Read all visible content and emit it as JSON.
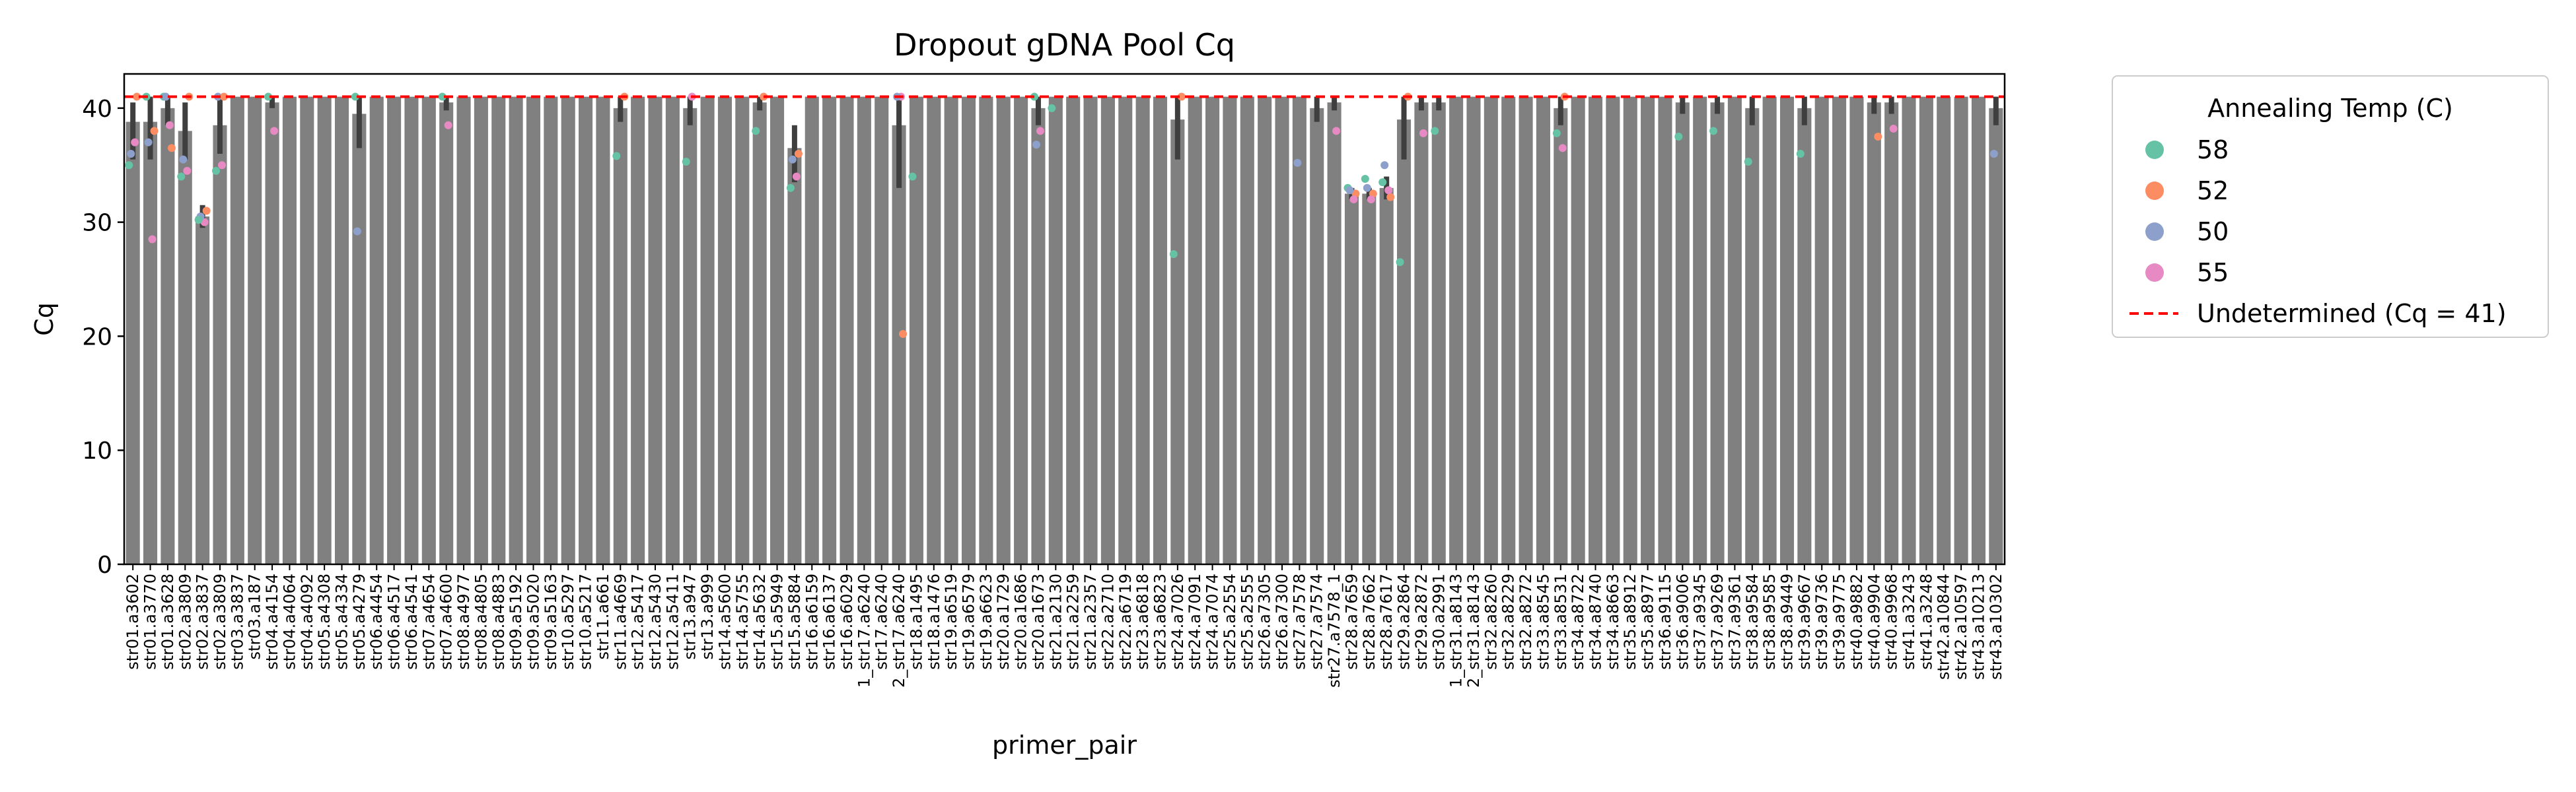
{
  "chart_data": {
    "type": "bar",
    "title": "Dropout gDNA Pool Cq",
    "xlabel": "primer_pair",
    "ylabel": "Cq",
    "ylim": [
      0,
      43
    ],
    "yticks": [
      0,
      10,
      20,
      30,
      40
    ],
    "grid": false,
    "bar_color": "#808080",
    "errorbar_color": "#3f3f3f",
    "legend": {
      "title": "Annealing Temp (C)",
      "position": "outside-right",
      "items": [
        {
          "label": "58",
          "color": "#66c2a5"
        },
        {
          "label": "52",
          "color": "#fc8d62"
        },
        {
          "label": "50",
          "color": "#8da0cb"
        },
        {
          "label": "55",
          "color": "#e78ac3"
        }
      ],
      "line_label": "Undetermined (Cq = 41)"
    },
    "threshold": {
      "value": 41,
      "color": "#ff0000",
      "label": "Undetermined (Cq = 41)"
    },
    "categories": [
      "str01.a3602",
      "str01.a3770",
      "str01.a3628",
      "str02.a3809",
      "str02.a3837",
      "str02.a3809",
      "str03.a3837",
      "str03.a187",
      "str04.a4154",
      "str04.a4064",
      "str04.a4092",
      "str05.a4308",
      "str05.a4334",
      "str05.a4279",
      "str06.a4454",
      "str06.a4517",
      "str06.a4541",
      "str07.a4654",
      "str07.a4600",
      "str08.a4977",
      "str08.a4805",
      "str08.a4883",
      "str09.a5192",
      "str09.a5020",
      "str09.a5163",
      "str10.a5297",
      "str10.a5217",
      "str11.a661",
      "str11.a4669",
      "str12.a5417",
      "str12.a5430",
      "str12.a5411",
      "str13.a947",
      "str13.a999",
      "str14.a5600",
      "str14.a5755",
      "str14.a5632",
      "str15.a5949",
      "str15.a5884",
      "str16.a6159",
      "str16.a6137",
      "str16.a6029",
      "1_str17.a6240",
      "str17.a6240",
      "2_str17.a6240",
      "str18.a1495",
      "str18.a1476",
      "str19.a6519",
      "str19.a6579",
      "str19.a6623",
      "str20.a1729",
      "str20.a1686",
      "str20.a1673",
      "str21.a2130",
      "str21.a2259",
      "str21.a2357",
      "str22.a2710",
      "str22.a6719",
      "str23.a6818",
      "str23.a6823",
      "str24.a7026",
      "str24.a7091",
      "str24.a7074",
      "str25.a2554",
      "str25.a2555",
      "str26.a7305",
      "str26.a7300",
      "str27.a7578",
      "str27.a7574",
      "str27.a7578_1",
      "str28.a7659",
      "str28.a7662",
      "str28.a7617",
      "str29.a2864",
      "str29.a2872",
      "str30.a2991",
      "1_str31.a8143",
      "2_str31.a8143",
      "str32.a8260",
      "str32.a8229",
      "str32.a8272",
      "str33.a8545",
      "str33.a8531",
      "str34.a8722",
      "str34.a8740",
      "str34.a8663",
      "str35.a8912",
      "str35.a8977",
      "str36.a9115",
      "str36.a9006",
      "str37.a9345",
      "str37.a9269",
      "str37.a9361",
      "str38.a9584",
      "str38.a9585",
      "str38.a9449",
      "str39.a9667",
      "str39.a9736",
      "str39.a9775",
      "str40.a9882",
      "str40.a9904",
      "str40.a9968",
      "str41.a3243",
      "str41.a3248",
      "str42.a10844",
      "str42.a10597",
      "str43.a10213",
      "str43.a10302"
    ],
    "values": [
      38.8,
      38.8,
      40.0,
      38.0,
      30.5,
      38.5,
      41,
      41,
      40.5,
      41,
      41,
      41,
      41,
      39.5,
      41,
      41,
      41,
      41,
      40.5,
      41,
      41,
      41,
      41,
      41,
      41,
      41,
      41,
      41,
      40.0,
      41,
      41,
      41,
      40.0,
      41,
      41,
      41,
      40.5,
      41,
      36.5,
      41,
      41,
      41,
      41,
      41,
      38.5,
      41,
      41,
      41,
      41,
      41,
      41,
      41,
      40.0,
      41,
      41,
      41,
      41,
      41,
      41,
      41,
      39.0,
      41,
      41,
      41,
      41,
      41,
      41,
      41,
      40.0,
      40.5,
      32.5,
      32.5,
      33.0,
      39.0,
      40.5,
      40.5,
      41,
      41,
      41,
      41,
      41,
      41,
      40.0,
      41,
      41,
      41,
      41,
      41,
      41,
      40.5,
      41,
      40.5,
      41,
      40.0,
      41,
      41,
      40.0,
      41,
      41,
      41,
      40.5,
      40.5,
      41,
      41,
      41,
      41,
      41,
      40.0
    ],
    "errors": [
      [
        35.5,
        40.5
      ],
      [
        35.5,
        41
      ],
      [
        38.5,
        41
      ],
      [
        35.5,
        40.5
      ],
      [
        29.5,
        31.5
      ],
      [
        36.0,
        41
      ],
      [
        41,
        41
      ],
      [
        41,
        41
      ],
      [
        40.0,
        41
      ],
      [
        41,
        41
      ],
      [
        41,
        41
      ],
      [
        41,
        41
      ],
      [
        41,
        41
      ],
      [
        36.5,
        41
      ],
      [
        41,
        41
      ],
      [
        41,
        41
      ],
      [
        41,
        41
      ],
      [
        41,
        41
      ],
      [
        39.8,
        41
      ],
      [
        41,
        41
      ],
      [
        41,
        41
      ],
      [
        41,
        41
      ],
      [
        41,
        41
      ],
      [
        41,
        41
      ],
      [
        41,
        41
      ],
      [
        41,
        41
      ],
      [
        41,
        41
      ],
      [
        41,
        41
      ],
      [
        38.8,
        41
      ],
      [
        41,
        41
      ],
      [
        41,
        41
      ],
      [
        41,
        41
      ],
      [
        38.5,
        41
      ],
      [
        41,
        41
      ],
      [
        41,
        41
      ],
      [
        41,
        41
      ],
      [
        39.8,
        41
      ],
      [
        41,
        41
      ],
      [
        33.5,
        38.5
      ],
      [
        41,
        41
      ],
      [
        41,
        41
      ],
      [
        41,
        41
      ],
      [
        41,
        41
      ],
      [
        41,
        41
      ],
      [
        33.0,
        41
      ],
      [
        41,
        41
      ],
      [
        41,
        41
      ],
      [
        41,
        41
      ],
      [
        41,
        41
      ],
      [
        41,
        41
      ],
      [
        41,
        41
      ],
      [
        41,
        41
      ],
      [
        38.5,
        41
      ],
      [
        41,
        41
      ],
      [
        41,
        41
      ],
      [
        41,
        41
      ],
      [
        41,
        41
      ],
      [
        41,
        41
      ],
      [
        41,
        41
      ],
      [
        41,
        41
      ],
      [
        35.5,
        41
      ],
      [
        41,
        41
      ],
      [
        41,
        41
      ],
      [
        41,
        41
      ],
      [
        41,
        41
      ],
      [
        41,
        41
      ],
      [
        41,
        41
      ],
      [
        41,
        41
      ],
      [
        38.8,
        41
      ],
      [
        39.8,
        41
      ],
      [
        32.0,
        33.0
      ],
      [
        32.0,
        33.0
      ],
      [
        32.0,
        34.0
      ],
      [
        35.5,
        41
      ],
      [
        39.8,
        41
      ],
      [
        39.8,
        41
      ],
      [
        41,
        41
      ],
      [
        41,
        41
      ],
      [
        41,
        41
      ],
      [
        41,
        41
      ],
      [
        41,
        41
      ],
      [
        41,
        41
      ],
      [
        38.5,
        41
      ],
      [
        41,
        41
      ],
      [
        41,
        41
      ],
      [
        41,
        41
      ],
      [
        41,
        41
      ],
      [
        41,
        41
      ],
      [
        41,
        41
      ],
      [
        39.5,
        41
      ],
      [
        41,
        41
      ],
      [
        39.5,
        41
      ],
      [
        41,
        41
      ],
      [
        38.5,
        41
      ],
      [
        41,
        41
      ],
      [
        41,
        41
      ],
      [
        38.5,
        41
      ],
      [
        41,
        41
      ],
      [
        41,
        41
      ],
      [
        41,
        41
      ],
      [
        39.5,
        41
      ],
      [
        39.5,
        41
      ],
      [
        41,
        41
      ],
      [
        41,
        41
      ],
      [
        41,
        41
      ],
      [
        41,
        41
      ],
      [
        41,
        41
      ],
      [
        38.5,
        41
      ]
    ],
    "points": [
      {
        "i": 0,
        "t": "55",
        "y": 37.0
      },
      {
        "i": 0,
        "t": "50",
        "y": 36.0
      },
      {
        "i": 0,
        "t": "58",
        "y": 35.0
      },
      {
        "i": 0,
        "t": "52",
        "y": 41
      },
      {
        "i": 1,
        "t": "55",
        "y": 28.5
      },
      {
        "i": 1,
        "t": "52",
        "y": 38.0
      },
      {
        "i": 1,
        "t": "50",
        "y": 37.0
      },
      {
        "i": 1,
        "t": "58",
        "y": 41
      },
      {
        "i": 2,
        "t": "52",
        "y": 36.5
      },
      {
        "i": 2,
        "t": "55",
        "y": 38.5
      },
      {
        "i": 2,
        "t": "58",
        "y": 41
      },
      {
        "i": 2,
        "t": "50",
        "y": 41
      },
      {
        "i": 3,
        "t": "55",
        "y": 34.5
      },
      {
        "i": 3,
        "t": "58",
        "y": 34.0
      },
      {
        "i": 3,
        "t": "50",
        "y": 35.5
      },
      {
        "i": 3,
        "t": "52",
        "y": 41
      },
      {
        "i": 4,
        "t": "52",
        "y": 31.0
      },
      {
        "i": 4,
        "t": "55",
        "y": 30.0
      },
      {
        "i": 4,
        "t": "50",
        "y": 30.5
      },
      {
        "i": 4,
        "t": "58",
        "y": 30.2
      },
      {
        "i": 5,
        "t": "55",
        "y": 35.0
      },
      {
        "i": 5,
        "t": "58",
        "y": 34.5
      },
      {
        "i": 5,
        "t": "50",
        "y": 41
      },
      {
        "i": 5,
        "t": "52",
        "y": 41
      },
      {
        "i": 8,
        "t": "55",
        "y": 38.0
      },
      {
        "i": 8,
        "t": "58",
        "y": 41
      },
      {
        "i": 13,
        "t": "50",
        "y": 29.2
      },
      {
        "i": 13,
        "t": "58",
        "y": 41
      },
      {
        "i": 18,
        "t": "55",
        "y": 38.5
      },
      {
        "i": 18,
        "t": "58",
        "y": 41
      },
      {
        "i": 28,
        "t": "58",
        "y": 35.8
      },
      {
        "i": 28,
        "t": "52",
        "y": 41
      },
      {
        "i": 32,
        "t": "58",
        "y": 35.3
      },
      {
        "i": 32,
        "t": "55",
        "y": 41
      },
      {
        "i": 36,
        "t": "58",
        "y": 38.0
      },
      {
        "i": 36,
        "t": "52",
        "y": 41
      },
      {
        "i": 38,
        "t": "58",
        "y": 33.0
      },
      {
        "i": 38,
        "t": "50",
        "y": 35.5
      },
      {
        "i": 38,
        "t": "52",
        "y": 36.0
      },
      {
        "i": 38,
        "t": "55",
        "y": 34.0
      },
      {
        "i": 44,
        "t": "52",
        "y": 20.2
      },
      {
        "i": 44,
        "t": "55",
        "y": 41
      },
      {
        "i": 44,
        "t": "50",
        "y": 41
      },
      {
        "i": 45,
        "t": "58",
        "y": 34.0
      },
      {
        "i": 52,
        "t": "55",
        "y": 38.0
      },
      {
        "i": 52,
        "t": "50",
        "y": 36.8
      },
      {
        "i": 52,
        "t": "58",
        "y": 41
      },
      {
        "i": 53,
        "t": "58",
        "y": 40.0
      },
      {
        "i": 60,
        "t": "58",
        "y": 27.2
      },
      {
        "i": 60,
        "t": "52",
        "y": 41
      },
      {
        "i": 67,
        "t": "50",
        "y": 35.2
      },
      {
        "i": 69,
        "t": "55",
        "y": 38.0
      },
      {
        "i": 70,
        "t": "52",
        "y": 32.5
      },
      {
        "i": 70,
        "t": "55",
        "y": 32.0
      },
      {
        "i": 70,
        "t": "58",
        "y": 33.0
      },
      {
        "i": 70,
        "t": "50",
        "y": 32.8
      },
      {
        "i": 71,
        "t": "58",
        "y": 33.8
      },
      {
        "i": 71,
        "t": "52",
        "y": 32.5
      },
      {
        "i": 71,
        "t": "50",
        "y": 33.0
      },
      {
        "i": 71,
        "t": "55",
        "y": 32.0
      },
      {
        "i": 72,
        "t": "50",
        "y": 35.0
      },
      {
        "i": 72,
        "t": "52",
        "y": 32.2
      },
      {
        "i": 72,
        "t": "58",
        "y": 33.5
      },
      {
        "i": 72,
        "t": "55",
        "y": 32.8
      },
      {
        "i": 73,
        "t": "58",
        "y": 26.5
      },
      {
        "i": 73,
        "t": "52",
        "y": 41
      },
      {
        "i": 74,
        "t": "55",
        "y": 37.8
      },
      {
        "i": 75,
        "t": "58",
        "y": 38.0
      },
      {
        "i": 82,
        "t": "58",
        "y": 37.8
      },
      {
        "i": 82,
        "t": "55",
        "y": 36.5
      },
      {
        "i": 82,
        "t": "52",
        "y": 41
      },
      {
        "i": 89,
        "t": "58",
        "y": 37.5
      },
      {
        "i": 91,
        "t": "58",
        "y": 38.0
      },
      {
        "i": 93,
        "t": "58",
        "y": 35.3
      },
      {
        "i": 96,
        "t": "58",
        "y": 36.0
      },
      {
        "i": 100,
        "t": "52",
        "y": 37.5
      },
      {
        "i": 101,
        "t": "55",
        "y": 38.2
      },
      {
        "i": 107,
        "t": "50",
        "y": 36.0
      }
    ]
  }
}
